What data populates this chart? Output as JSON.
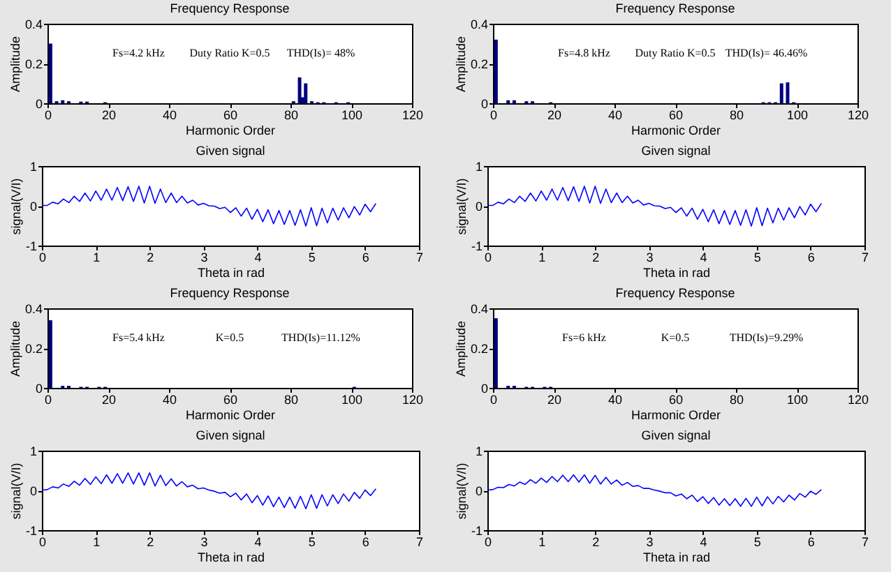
{
  "chart_data": [
    {
      "type": "bar",
      "title": "Frequency Response",
      "xlabel": "Harmonic Order",
      "ylabel": "Amplitude",
      "color": "#000080",
      "xlim": [
        0,
        120
      ],
      "xticks": [
        0,
        20,
        40,
        60,
        80,
        100,
        120
      ],
      "ylim": [
        0,
        0.4
      ],
      "yticks": [
        0,
        0.2,
        0.4
      ],
      "annotations": [
        "Fs=4.2 kHz",
        "Duty Ratio K=0.5",
        "THD(Is)= 48%"
      ],
      "x": [
        1,
        3,
        5,
        7,
        11,
        13,
        19,
        81,
        83,
        84,
        85,
        87,
        89,
        91,
        95,
        99
      ],
      "values": [
        0.3,
        0.01,
        0.015,
        0.01,
        0.008,
        0.008,
        0.005,
        0.01,
        0.13,
        0.03,
        0.1,
        0.01,
        0.005,
        0.005,
        0.005,
        0.005
      ]
    },
    {
      "type": "bar",
      "title": "Frequency Response",
      "xlabel": "Harmonic Order",
      "ylabel": "Amplitude",
      "color": "#000080",
      "xlim": [
        0,
        120
      ],
      "xticks": [
        0,
        20,
        40,
        60,
        80,
        100,
        120
      ],
      "ylim": [
        0,
        0.4
      ],
      "yticks": [
        0,
        0.2,
        0.4
      ],
      "annotations": [
        "Fs=4.8 kHz",
        "Duty Ratio K=0.5",
        "THD(Is)= 46.46%"
      ],
      "x": [
        1,
        5,
        7,
        11,
        13,
        19,
        89,
        91,
        93,
        95,
        97,
        99
      ],
      "values": [
        0.32,
        0.015,
        0.015,
        0.01,
        0.01,
        0.005,
        0.005,
        0.005,
        0.005,
        0.1,
        0.105,
        0.005
      ]
    },
    {
      "type": "line",
      "title": "Given signal",
      "xlabel": "Theta in rad",
      "ylabel": "signal(V/I)",
      "color": "#0000ff",
      "xlim": [
        0,
        7
      ],
      "xticks": [
        0,
        1,
        2,
        3,
        4,
        5,
        6,
        7
      ],
      "ylim": [
        -1,
        1
      ],
      "yticks": [
        -1,
        0,
        1
      ],
      "x": [
        0,
        0.1,
        0.2,
        0.3,
        0.4,
        0.5,
        0.6,
        0.7,
        0.8,
        0.9,
        1,
        1.1,
        1.2,
        1.3,
        1.4,
        1.5,
        1.6,
        1.7,
        1.8,
        1.9,
        2,
        2.1,
        2.2,
        2.3,
        2.4,
        2.5,
        2.6,
        2.7,
        2.8,
        2.9,
        3,
        3.1,
        3.2,
        3.3,
        3.4,
        3.5,
        3.6,
        3.7,
        3.8,
        3.9,
        4,
        4.1,
        4.2,
        4.3,
        4.4,
        4.5,
        4.6,
        4.7,
        4.8,
        4.9,
        5,
        5.1,
        5.2,
        5.3,
        5.4,
        5.5,
        5.6,
        5.7,
        5.8,
        5.9,
        6,
        6.1,
        6.2
      ],
      "values": [
        0.01,
        0.01,
        0.09,
        0.05,
        0.17,
        0.08,
        0.24,
        0.11,
        0.32,
        0.12,
        0.37,
        0.14,
        0.42,
        0.14,
        0.46,
        0.13,
        0.48,
        0.11,
        0.49,
        0.07,
        0.49,
        0.06,
        0.42,
        0.08,
        0.32,
        0.08,
        0.24,
        0.07,
        0.14,
        0.02,
        0.06,
        0,
        -0.01,
        -0.07,
        -0.04,
        -0.17,
        -0.05,
        -0.26,
        -0.06,
        -0.34,
        -0.09,
        -0.4,
        -0.1,
        -0.45,
        -0.12,
        -0.47,
        -0.12,
        -0.49,
        -0.1,
        -0.51,
        -0.05,
        -0.5,
        -0.06,
        -0.43,
        -0.06,
        -0.36,
        -0.05,
        -0.3,
        -0.02,
        -0.23,
        0.04,
        -0.15,
        0.06
      ]
    },
    {
      "type": "line",
      "title": "Given signal",
      "xlabel": "Theta in rad",
      "ylabel": "signal(V/I)",
      "color": "#0000ff",
      "xlim": [
        0,
        7
      ],
      "xticks": [
        0,
        1,
        2,
        3,
        4,
        5,
        6,
        7
      ],
      "ylim": [
        -1,
        1
      ],
      "yticks": [
        -1,
        0,
        1
      ],
      "x": [
        0,
        0.1,
        0.2,
        0.3,
        0.4,
        0.5,
        0.6,
        0.7,
        0.8,
        0.9,
        1,
        1.1,
        1.2,
        1.3,
        1.4,
        1.5,
        1.6,
        1.7,
        1.8,
        1.9,
        2,
        2.1,
        2.2,
        2.3,
        2.4,
        2.5,
        2.6,
        2.7,
        2.8,
        2.9,
        3,
        3.1,
        3.2,
        3.3,
        3.4,
        3.5,
        3.6,
        3.7,
        3.8,
        3.9,
        4,
        4.1,
        4.2,
        4.3,
        4.4,
        4.5,
        4.6,
        4.7,
        4.8,
        4.9,
        5,
        5.1,
        5.2,
        5.3,
        5.4,
        5.5,
        5.6,
        5.7,
        5.8,
        5.9,
        6,
        6.1,
        6.2
      ],
      "values": [
        0.01,
        0.01,
        0.09,
        0.05,
        0.17,
        0.08,
        0.24,
        0.11,
        0.32,
        0.12,
        0.37,
        0.14,
        0.42,
        0.14,
        0.46,
        0.13,
        0.48,
        0.11,
        0.49,
        0.07,
        0.49,
        0.06,
        0.42,
        0.08,
        0.32,
        0.08,
        0.24,
        0.07,
        0.14,
        0.02,
        0.06,
        0,
        -0.01,
        -0.07,
        -0.04,
        -0.17,
        -0.05,
        -0.26,
        -0.06,
        -0.34,
        -0.09,
        -0.4,
        -0.1,
        -0.45,
        -0.12,
        -0.47,
        -0.12,
        -0.49,
        -0.1,
        -0.51,
        -0.05,
        -0.5,
        -0.06,
        -0.43,
        -0.06,
        -0.36,
        -0.05,
        -0.3,
        -0.02,
        -0.23,
        0.04,
        -0.15,
        0.06
      ]
    },
    {
      "type": "bar",
      "title": "Frequency Response",
      "xlabel": "Harmonic Order",
      "ylabel": "Amplitude",
      "color": "#000080",
      "xlim": [
        0,
        120
      ],
      "xticks": [
        0,
        20,
        40,
        60,
        80,
        100,
        120
      ],
      "ylim": [
        0,
        0.4
      ],
      "yticks": [
        0,
        0.2,
        0.4
      ],
      "annotations": [
        "Fs=5.4 kHz",
        "K=0.5",
        "THD(Is)=11.12%"
      ],
      "x": [
        1,
        5,
        7,
        11,
        13,
        17,
        19,
        101
      ],
      "values": [
        0.34,
        0.01,
        0.01,
        0.005,
        0.005,
        0.005,
        0.005,
        0.005
      ]
    },
    {
      "type": "bar",
      "title": "Frequency Response",
      "xlabel": "Harmonic Order",
      "ylabel": "Amplitude",
      "color": "#000080",
      "xlim": [
        0,
        120
      ],
      "xticks": [
        0,
        20,
        40,
        60,
        80,
        100,
        120
      ],
      "ylim": [
        0,
        0.4
      ],
      "yticks": [
        0,
        0.2,
        0.4
      ],
      "annotations": [
        "Fs=6 kHz",
        "K=0.5",
        "THD(Is)=9.29%"
      ],
      "x": [
        1,
        5,
        7,
        11,
        13,
        17,
        19
      ],
      "values": [
        0.35,
        0.01,
        0.01,
        0.005,
        0.005,
        0.005,
        0.005
      ]
    },
    {
      "type": "line",
      "title": "Given signal",
      "xlabel": "Theta in rad",
      "ylabel": "signal(V/I)",
      "color": "#0000ff",
      "xlim": [
        0,
        7
      ],
      "xticks": [
        0,
        1,
        2,
        3,
        4,
        5,
        6,
        7
      ],
      "ylim": [
        -1,
        1
      ],
      "yticks": [
        -1,
        0,
        1
      ],
      "x": [
        0,
        0.1,
        0.2,
        0.3,
        0.4,
        0.5,
        0.6,
        0.7,
        0.8,
        0.9,
        1,
        1.1,
        1.2,
        1.3,
        1.4,
        1.5,
        1.6,
        1.7,
        1.8,
        1.9,
        2,
        2.1,
        2.2,
        2.3,
        2.4,
        2.5,
        2.6,
        2.7,
        2.8,
        2.9,
        3,
        3.1,
        3.2,
        3.3,
        3.4,
        3.5,
        3.6,
        3.7,
        3.8,
        3.9,
        4,
        4.1,
        4.2,
        4.3,
        4.4,
        4.5,
        4.6,
        4.7,
        4.8,
        4.9,
        5,
        5.1,
        5.2,
        5.3,
        5.4,
        5.5,
        5.6,
        5.7,
        5.8,
        5.9,
        6,
        6.1,
        6.2
      ],
      "values": [
        0.01,
        0.02,
        0.09,
        0.06,
        0.16,
        0.1,
        0.23,
        0.13,
        0.3,
        0.15,
        0.34,
        0.17,
        0.39,
        0.18,
        0.42,
        0.18,
        0.44,
        0.16,
        0.44,
        0.13,
        0.44,
        0.11,
        0.38,
        0.12,
        0.29,
        0.11,
        0.22,
        0.09,
        0.13,
        0.04,
        0.06,
        0.01,
        -0.02,
        -0.07,
        -0.05,
        -0.16,
        -0.07,
        -0.24,
        -0.09,
        -0.31,
        -0.13,
        -0.37,
        -0.14,
        -0.41,
        -0.17,
        -0.43,
        -0.17,
        -0.45,
        -0.15,
        -0.46,
        -0.11,
        -0.45,
        -0.11,
        -0.39,
        -0.11,
        -0.33,
        -0.09,
        -0.27,
        -0.05,
        -0.2,
        0.01,
        -0.13,
        0.04
      ]
    },
    {
      "type": "line",
      "title": "Given signal",
      "xlabel": "Theta in rad",
      "ylabel": "signal(V/I)",
      "color": "#0000ff",
      "xlim": [
        0,
        7
      ],
      "xticks": [
        0,
        1,
        2,
        3,
        4,
        5,
        6,
        7
      ],
      "ylim": [
        -1,
        1
      ],
      "yticks": [
        -1,
        0,
        1
      ],
      "x": [
        0,
        0.1,
        0.2,
        0.3,
        0.4,
        0.5,
        0.6,
        0.7,
        0.8,
        0.9,
        1,
        1.1,
        1.2,
        1.3,
        1.4,
        1.5,
        1.6,
        1.7,
        1.8,
        1.9,
        2,
        2.1,
        2.2,
        2.3,
        2.4,
        2.5,
        2.6,
        2.7,
        2.8,
        2.9,
        3,
        3.1,
        3.2,
        3.3,
        3.4,
        3.5,
        3.6,
        3.7,
        3.8,
        3.9,
        4,
        4.1,
        4.2,
        4.3,
        4.4,
        4.5,
        4.6,
        4.7,
        4.8,
        4.9,
        5,
        5.1,
        5.2,
        5.3,
        5.4,
        5.5,
        5.6,
        5.7,
        5.8,
        5.9,
        6,
        6.1,
        6.2
      ],
      "values": [
        0.01,
        0.02,
        0.08,
        0.07,
        0.15,
        0.11,
        0.21,
        0.15,
        0.27,
        0.18,
        0.31,
        0.2,
        0.35,
        0.22,
        0.38,
        0.22,
        0.39,
        0.21,
        0.39,
        0.18,
        0.38,
        0.16,
        0.33,
        0.16,
        0.26,
        0.13,
        0.2,
        0.1,
        0.12,
        0.05,
        0.05,
        0.01,
        -0.02,
        -0.06,
        -0.06,
        -0.14,
        -0.09,
        -0.21,
        -0.12,
        -0.28,
        -0.16,
        -0.33,
        -0.18,
        -0.37,
        -0.21,
        -0.38,
        -0.21,
        -0.4,
        -0.2,
        -0.4,
        -0.17,
        -0.39,
        -0.16,
        -0.34,
        -0.15,
        -0.29,
        -0.12,
        -0.24,
        -0.08,
        -0.17,
        -0.02,
        -0.1,
        0.02
      ]
    }
  ]
}
